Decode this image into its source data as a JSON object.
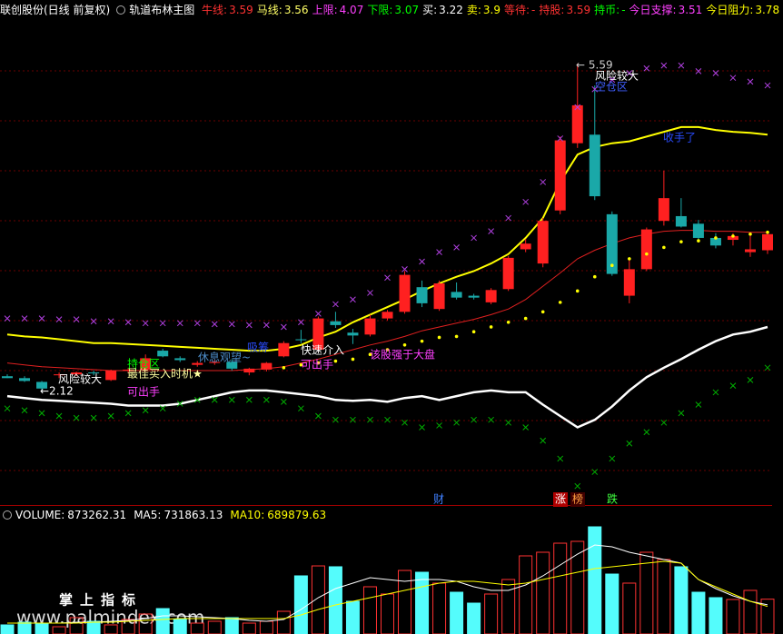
{
  "header": {
    "stock": "联创股份(日线 前复权)",
    "indicator": "轨道布林主图",
    "items": [
      {
        "label": "牛线:",
        "value": 3.59,
        "color": "#ff3232"
      },
      {
        "label": "马线:",
        "value": 3.56,
        "color": "#ffff66"
      },
      {
        "label": "上限:",
        "value": 4.07,
        "color": "#ff40ff"
      },
      {
        "label": "下限:",
        "value": 3.07,
        "color": "#00ff00"
      },
      {
        "label": "买:",
        "value": 3.22,
        "color": "#ffffff"
      },
      {
        "label": "卖:",
        "value": 3.9,
        "color": "#ffff00"
      },
      {
        "label": "等待:",
        "value": "-",
        "color": "#ff3232"
      },
      {
        "label": "持股:",
        "value": 3.59,
        "color": "#ff3232"
      },
      {
        "label": "持币:",
        "value": "-",
        "color": "#00ff00"
      },
      {
        "label": "今日支撑:",
        "value": 3.51,
        "color": "#ff40ff"
      },
      {
        "label": "今日阻力:",
        "value": 3.78,
        "color": "#ffff00"
      }
    ]
  },
  "chart_data": [
    {
      "type": "candlestick",
      "up_color": "#ff2020",
      "down_color": "#1aa8a8",
      "ylim": [
        0.94,
        6.07
      ],
      "open": [
        2.29,
        2.27,
        2.23,
        2.3,
        2.31,
        2.33,
        2.25,
        2.35,
        2.36,
        2.56,
        2.48,
        2.41,
        2.43,
        2.44,
        2.33,
        2.36,
        2.5,
        2.68,
        2.57,
        2.87,
        2.75,
        2.73,
        2.9,
        2.97,
        3.23,
        3.0,
        3.18,
        3.14,
        3.07,
        3.21,
        3.63,
        3.48,
        4.04,
        4.75,
        4.84,
        4.0,
        3.14,
        3.42,
        3.93,
        3.98,
        3.9,
        3.75,
        3.73,
        3.6,
        3.62
      ],
      "high": [
        2.31,
        2.29,
        2.24,
        2.33,
        2.34,
        2.35,
        2.36,
        2.38,
        2.52,
        2.58,
        2.5,
        2.45,
        2.46,
        2.47,
        2.38,
        2.44,
        2.66,
        2.78,
        2.92,
        2.97,
        2.79,
        2.94,
        2.99,
        3.4,
        3.3,
        3.3,
        3.28,
        3.16,
        3.22,
        3.56,
        3.74,
        3.96,
        4.82,
        5.59,
        5.36,
        4.03,
        3.52,
        3.86,
        4.46,
        4.17,
        3.94,
        3.8,
        3.8,
        3.8,
        3.8
      ],
      "low": [
        2.27,
        2.23,
        2.12,
        2.27,
        2.29,
        2.3,
        2.24,
        2.33,
        2.35,
        2.49,
        2.44,
        2.39,
        2.41,
        2.35,
        2.3,
        2.34,
        2.49,
        2.64,
        2.55,
        2.8,
        2.63,
        2.71,
        2.88,
        2.95,
        3.02,
        2.98,
        3.1,
        3.1,
        3.05,
        3.19,
        3.6,
        3.44,
        4.0,
        4.7,
        4.15,
        3.35,
        3.06,
        3.4,
        3.88,
        3.86,
        3.72,
        3.64,
        3.67,
        3.55,
        3.58
      ],
      "close": [
        2.27,
        2.24,
        2.16,
        2.31,
        2.33,
        2.32,
        2.35,
        2.36,
        2.48,
        2.5,
        2.46,
        2.43,
        2.44,
        2.37,
        2.37,
        2.43,
        2.64,
        2.67,
        2.9,
        2.83,
        2.72,
        2.9,
        2.97,
        3.36,
        3.06,
        3.27,
        3.12,
        3.12,
        3.2,
        3.54,
        3.69,
        3.93,
        4.78,
        5.15,
        4.19,
        3.37,
        3.42,
        3.84,
        4.17,
        3.87,
        3.75,
        3.67,
        3.77,
        3.63,
        3.79
      ],
      "series": [
        {
          "style": "line",
          "color": "#ffff00",
          "line_width": 2,
          "values": [
            2.73,
            2.71,
            2.7,
            2.68,
            2.66,
            2.64,
            2.64,
            2.63,
            2.62,
            2.61,
            2.6,
            2.59,
            2.58,
            2.57,
            2.56,
            2.56,
            2.58,
            2.62,
            2.7,
            2.76,
            2.86,
            2.94,
            3.02,
            3.1,
            3.19,
            3.27,
            3.34,
            3.4,
            3.48,
            3.58,
            3.75,
            3.96,
            4.34,
            4.63,
            4.71,
            4.75,
            4.77,
            4.82,
            4.87,
            4.92,
            4.92,
            4.89,
            4.87,
            4.86,
            4.84
          ]
        },
        {
          "style": "line",
          "color": "#e02020",
          "line_width": 1,
          "values": [
            2.43,
            2.41,
            2.39,
            2.38,
            2.37,
            2.36,
            2.35,
            2.35,
            2.35,
            2.35,
            2.35,
            2.35,
            2.35,
            2.35,
            2.36,
            2.37,
            2.39,
            2.43,
            2.47,
            2.52,
            2.57,
            2.62,
            2.66,
            2.71,
            2.77,
            2.81,
            2.85,
            2.89,
            2.94,
            3.0,
            3.1,
            3.24,
            3.38,
            3.53,
            3.62,
            3.69,
            3.75,
            3.79,
            3.82,
            3.83,
            3.83,
            3.82,
            3.82,
            3.81,
            3.81
          ]
        },
        {
          "style": "line",
          "color": "#ffffff",
          "line_width": 2.5,
          "values": [
            2.08,
            2.06,
            2.04,
            2.03,
            2.02,
            2.01,
            2.0,
            1.98,
            1.98,
            1.98,
            2.0,
            2.04,
            2.08,
            2.12,
            2.14,
            2.14,
            2.12,
            2.1,
            2.08,
            2.04,
            2.03,
            2.04,
            2.02,
            2.06,
            2.08,
            2.04,
            2.08,
            2.12,
            2.14,
            2.12,
            2.12,
            1.99,
            1.87,
            1.75,
            1.83,
            1.97,
            2.14,
            2.28,
            2.38,
            2.47,
            2.57,
            2.66,
            2.73,
            2.76,
            2.81
          ]
        },
        {
          "style": "cross",
          "color": "#b040e0",
          "values": [
            2.9,
            2.9,
            2.9,
            2.89,
            2.89,
            2.87,
            2.87,
            2.86,
            2.85,
            2.85,
            2.85,
            2.85,
            2.84,
            2.84,
            2.83,
            2.83,
            2.81,
            2.86,
            2.95,
            3.05,
            3.1,
            3.17,
            3.33,
            3.42,
            3.5,
            3.6,
            3.65,
            3.75,
            3.82,
            3.96,
            4.13,
            4.34,
            4.8,
            5.13,
            5.32,
            5.42,
            5.49,
            5.54,
            5.57,
            5.57,
            5.51,
            5.49,
            5.44,
            5.4,
            5.36
          ]
        },
        {
          "style": "cross",
          "color": "#00b000",
          "values": [
            1.95,
            1.93,
            1.9,
            1.87,
            1.85,
            1.85,
            1.87,
            1.9,
            1.93,
            1.95,
            2.0,
            2.04,
            2.04,
            2.04,
            2.04,
            2.04,
            2.02,
            1.95,
            1.87,
            1.83,
            1.83,
            1.83,
            1.83,
            1.8,
            1.75,
            1.77,
            1.8,
            1.83,
            1.83,
            1.8,
            1.75,
            1.61,
            1.42,
            1.13,
            1.28,
            1.42,
            1.58,
            1.7,
            1.8,
            1.9,
            1.99,
            2.12,
            2.19,
            2.25,
            2.38
          ]
        },
        {
          "style": "dot",
          "color": "#ffff00",
          "values": [
            null,
            null,
            null,
            null,
            null,
            null,
            null,
            null,
            null,
            null,
            null,
            null,
            null,
            null,
            null,
            null,
            2.38,
            2.41,
            2.43,
            2.45,
            2.47,
            2.52,
            2.57,
            2.62,
            2.66,
            2.7,
            2.71,
            2.76,
            2.81,
            2.86,
            2.9,
            2.97,
            3.07,
            3.19,
            3.34,
            3.46,
            3.53,
            3.58,
            3.65,
            3.71,
            3.72,
            3.75,
            3.77,
            3.79,
            3.81
          ]
        }
      ],
      "annotations": [
        {
          "text": "风险较大",
          "color": "#ffffff"
        },
        {
          "text": "←2.12",
          "color": "#ffffff"
        },
        {
          "text": "持仓区",
          "color": "#00ff00"
        },
        {
          "text": "最佳买入时机★",
          "color": "#ffffa0"
        },
        {
          "text": "可出手",
          "color": "#ff40ff"
        },
        {
          "text": "休息观望~",
          "color": "#4c8cc8"
        },
        {
          "text": "吸筹",
          "color": "#2a4cff"
        },
        {
          "text": "快速介入",
          "color": "#ffffff"
        },
        {
          "text": "可出手",
          "color": "#ff40ff"
        },
        {
          "text": "该股强于大盘",
          "color": "#ff40ff"
        },
        {
          "text": "风险较大",
          "color": "#ffffff"
        },
        {
          "text": "空仓区",
          "color": "#4060ff"
        },
        {
          "text": "← 5.59",
          "color": "#cccccc"
        },
        {
          "text": "收手了",
          "color": "#2a4cff"
        }
      ],
      "badges": [
        {
          "text": "财",
          "color": "#4080ff"
        },
        {
          "text": "涨",
          "color": "#ffffff",
          "background": "#b00000"
        },
        {
          "text": "榜",
          "color": "#ffa040",
          "background": "#400000"
        },
        {
          "text": "跌",
          "color": "#40ff40"
        }
      ]
    },
    {
      "type": "bar",
      "ylim": [
        0,
        2800000
      ],
      "up_color": "#ff3232",
      "down_color": "#54fcfc",
      "legend": [
        {
          "label": "VOLUME:",
          "value": 873262.31,
          "color": "#ffffff"
        },
        {
          "label": "MA5:",
          "value": 731863.13,
          "color": "#ffffff"
        },
        {
          "label": "MA10:",
          "value": 689879.63,
          "color": "#ffff00"
        }
      ],
      "values": [
        228000,
        296000,
        273000,
        182000,
        410000,
        319000,
        228000,
        364000,
        501000,
        637000,
        364000,
        273000,
        319000,
        410000,
        273000,
        319000,
        569000,
        1457000,
        1707000,
        1685000,
        820000,
        1184000,
        1002000,
        1593000,
        1548000,
        1275000,
        1047000,
        774000,
        1002000,
        1366000,
        1958000,
        2049000,
        2276000,
        2322000,
        2686000,
        1502000,
        1275000,
        2049000,
        1867000,
        1685000,
        1047000,
        911000,
        865000,
        1093000,
        873262.31
      ],
      "series": [
        {
          "color": "#ffffff",
          "values": [
            273000,
            273000,
            273000,
            273000,
            296000,
            296000,
            319000,
            341000,
            387000,
            455000,
            455000,
            433000,
            410000,
            387000,
            341000,
            319000,
            364000,
            615000,
            911000,
            1138000,
            1275000,
            1411000,
            1366000,
            1320000,
            1366000,
            1366000,
            1320000,
            1184000,
            1093000,
            1093000,
            1229000,
            1457000,
            1730000,
            2003000,
            2231000,
            2185000,
            2049000,
            1958000,
            1867000,
            1776000,
            1366000,
            1138000,
            956000,
            820000,
            731863.13
          ]
        },
        {
          "color": "#ffff00",
          "values": [
            273000,
            273000,
            273000,
            273000,
            273000,
            296000,
            296000,
            319000,
            341000,
            364000,
            387000,
            387000,
            387000,
            387000,
            387000,
            387000,
            387000,
            478000,
            615000,
            728000,
            820000,
            911000,
            1002000,
            1093000,
            1184000,
            1275000,
            1320000,
            1320000,
            1275000,
            1229000,
            1275000,
            1366000,
            1457000,
            1548000,
            1639000,
            1685000,
            1730000,
            1776000,
            1821000,
            1776000,
            1366000,
            1184000,
            1002000,
            820000,
            689879.63
          ]
        }
      ]
    }
  ],
  "watermark": {
    "title": "掌上指标",
    "url": "www.palmindex.com"
  }
}
